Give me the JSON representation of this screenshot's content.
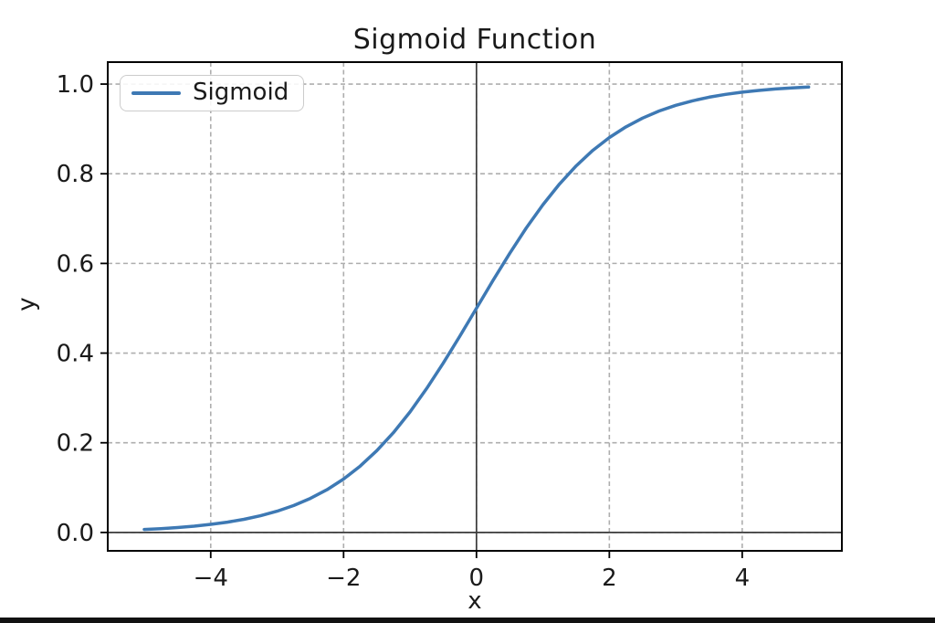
{
  "window": {
    "background": "#ffffff",
    "bottom_edge_color": "#111111"
  },
  "chart_data": {
    "type": "line",
    "title": "Sigmoid Function",
    "xlabel": "x",
    "ylabel": "y",
    "grid": true,
    "grid_style": "dashed",
    "legend": {
      "position": "upper-left",
      "entries": [
        {
          "label": "Sigmoid",
          "color": "#3e79b4"
        }
      ]
    },
    "xlim": [
      -5.55,
      5.5
    ],
    "ylim": [
      -0.041,
      1.049
    ],
    "xticks": [
      -4,
      -2,
      0,
      2,
      4
    ],
    "xtick_labels": [
      "−4",
      "−2",
      "0",
      "2",
      "4"
    ],
    "yticks": [
      0,
      0.2,
      0.4,
      0.6,
      0.8,
      1
    ],
    "ytick_labels": [
      "0.0",
      "0.2",
      "0.4",
      "0.6",
      "0.8",
      "1.0"
    ],
    "zero_lines": {
      "x": 0,
      "y": 0
    },
    "series": [
      {
        "name": "Sigmoid",
        "color": "#3e79b4",
        "line_width": 3.5,
        "x": [
          -5,
          -4.75,
          -4.5,
          -4.25,
          -4,
          -3.75,
          -3.5,
          -3.25,
          -3,
          -2.75,
          -2.5,
          -2.25,
          -2,
          -1.75,
          -1.5,
          -1.25,
          -1,
          -0.75,
          -0.5,
          -0.25,
          0,
          0.25,
          0.5,
          0.75,
          1,
          1.25,
          1.5,
          1.75,
          2,
          2.25,
          2.5,
          2.75,
          3,
          3.25,
          3.5,
          3.75,
          4,
          4.25,
          4.5,
          4.75,
          5
        ],
        "y": [
          0.00669,
          0.0086,
          0.01099,
          0.01406,
          0.01799,
          0.02298,
          0.02931,
          0.03733,
          0.04743,
          0.06009,
          0.07586,
          0.09535,
          0.1192,
          0.14805,
          0.18243,
          0.2227,
          0.26894,
          0.32082,
          0.37754,
          0.43782,
          0.5,
          0.56218,
          0.62246,
          0.67918,
          0.73106,
          0.7773,
          0.81757,
          0.85195,
          0.8808,
          0.90465,
          0.92414,
          0.93991,
          0.95257,
          0.96267,
          0.97069,
          0.97702,
          0.98201,
          0.98594,
          0.98901,
          0.9914,
          0.99331
        ]
      }
    ]
  },
  "style": {
    "text_color": "#1a1a1a",
    "frame_color": "#000000",
    "grid_color": "#aeaeae",
    "zero_line_color": "#3b3b3b",
    "legend_border_color": "#cccccc",
    "accent": "#3e79b4"
  }
}
